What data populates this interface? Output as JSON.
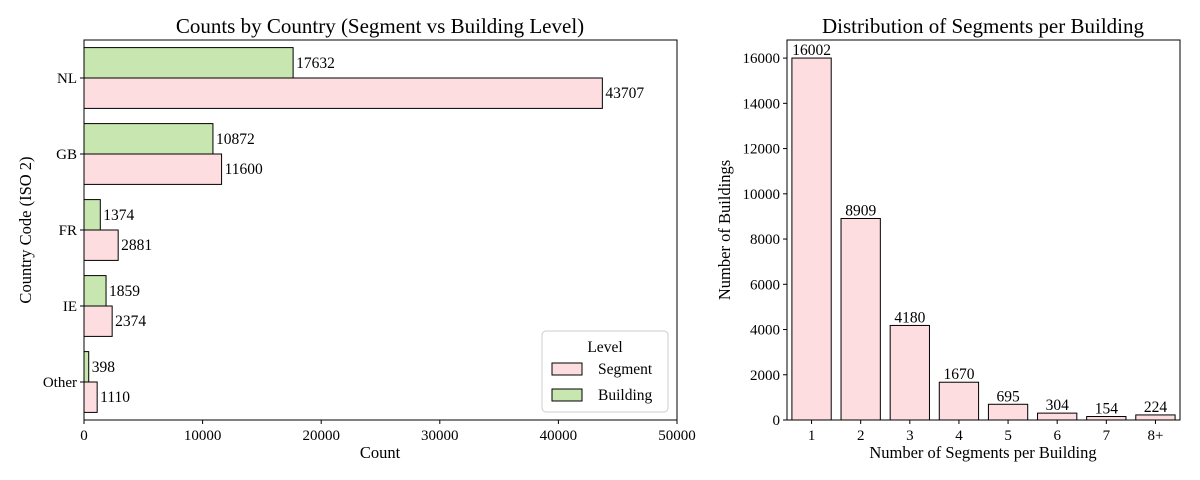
{
  "chart_data": [
    {
      "type": "bar",
      "orientation": "horizontal",
      "title": "Counts by Country (Segment vs Building Level)",
      "xlabel": "Count",
      "ylabel": "Country Code (ISO 2)",
      "categories": [
        "NL",
        "GB",
        "FR",
        "IE",
        "Other"
      ],
      "series": [
        {
          "name": "Segment",
          "color": "#fddde0",
          "values": [
            43707,
            11600,
            2881,
            2374,
            1110
          ]
        },
        {
          "name": "Building",
          "color": "#c8e6b0",
          "values": [
            17632,
            10872,
            1374,
            1859,
            398
          ]
        }
      ],
      "xlim": [
        0,
        50000
      ],
      "xticks": [
        "0",
        "10000",
        "20000",
        "30000",
        "40000",
        "50000"
      ],
      "legend": {
        "title": "Level",
        "position": "lower-right"
      },
      "grid": false
    },
    {
      "type": "bar",
      "title": "Distribution of Segments per Building",
      "xlabel": "Number of Segments per Building",
      "ylabel": "Number of Buildings",
      "categories": [
        "1",
        "2",
        "3",
        "4",
        "5",
        "6",
        "7",
        "8+"
      ],
      "values": [
        16002,
        8909,
        4180,
        1670,
        695,
        304,
        154,
        224
      ],
      "color": "#fddde0",
      "ylim": [
        0,
        16800
      ],
      "yticks": [
        "0",
        "2000",
        "4000",
        "6000",
        "8000",
        "10000",
        "12000",
        "14000",
        "16000"
      ],
      "grid": false
    }
  ]
}
